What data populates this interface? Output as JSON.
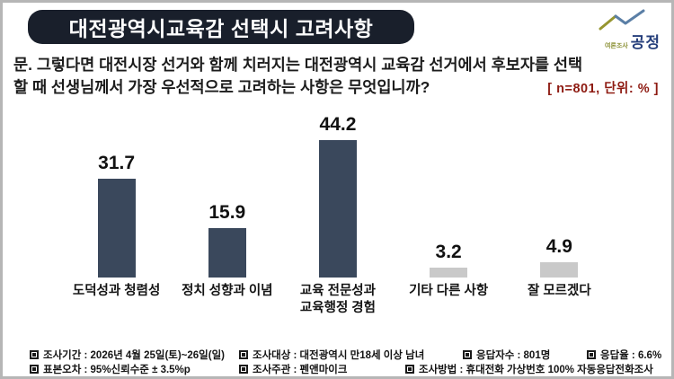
{
  "header": {
    "title": "대전광역시교육감 선택시 고려사항",
    "logo": {
      "small_text": "여론조사",
      "main_text": "공정"
    }
  },
  "question": {
    "line1": "문. 그렇다면 대전시장 선거와 함께 치러지는 대전광역시 교육감 선거에서 후보자를 선택",
    "line2": "할 때 선생님께서 가장 우선적으로 고려하는 사항은 무엇입니까?",
    "note": "[ n=801, 단위: % ]"
  },
  "chart_data": {
    "type": "bar",
    "title": "대전광역시교육감 선택시 고려사항",
    "categories": [
      "도덕성과 청렴성",
      "정치 성향과 이념",
      "교육 전문성과\n교육행정 경험",
      "기타 다른 사항",
      "잘 모르겠다"
    ],
    "values": [
      31.7,
      15.9,
      44.2,
      3.2,
      4.9
    ],
    "bar_colors": [
      "#3a485c",
      "#3a485c",
      "#3a485c",
      "#c9c9c9",
      "#c9c9c9"
    ],
    "unit_label": "[ n=801, 단위: % ]",
    "sample_n": 801,
    "xlabel": "",
    "ylabel": "",
    "ylim": [
      0,
      50
    ],
    "grid": false,
    "legend": "none",
    "value_labels": true
  },
  "footer": {
    "row1": [
      "조사기간 : 2026년 4월 25일(토)~26일(일)",
      "조사대상 : 대전광역시 만18세 이상 남녀",
      "응답자수 : 801명",
      "응답율 : 6.6%"
    ],
    "row2": [
      "표본오차 : 95%신뢰수준 ± 3.5%p",
      "조사주관 : 펜앤마이크",
      "조사방법 : 휴대전화 가상번호 100% 자동응답전화조사"
    ]
  },
  "colors": {
    "title_bg": "#191f2b",
    "bar_dark": "#3a485c",
    "bar_gray": "#c9c9c9",
    "note_red": "#8e1b12",
    "logo_navy": "#27407c",
    "logo_olive": "#8a8f33",
    "border_gray": "#b6b6b6"
  }
}
